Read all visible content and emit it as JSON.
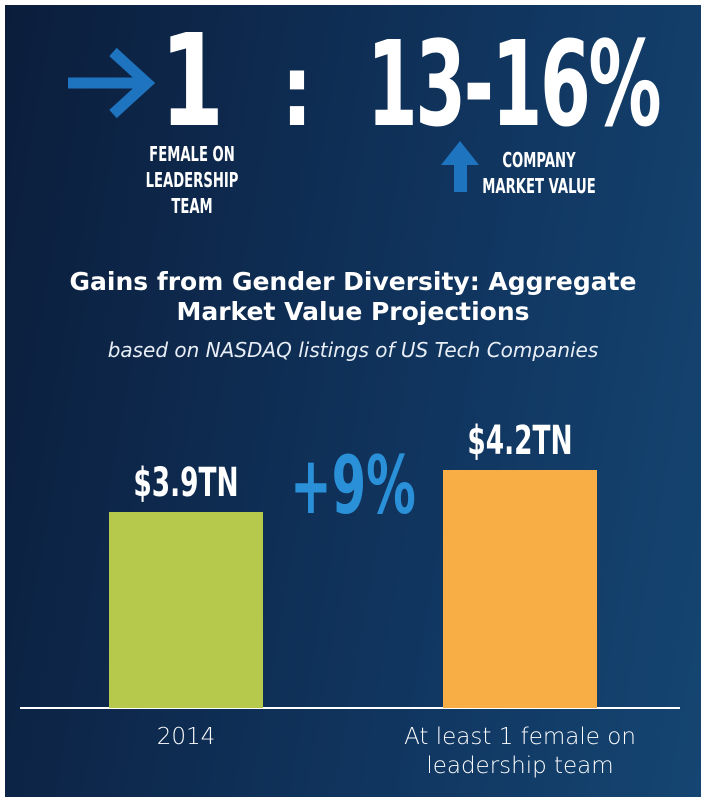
{
  "header": {
    "ratio_left": "1",
    "separator": ":",
    "ratio_right": "13-16%",
    "left_label": [
      "FEMALE ON",
      "LEADERSHIP",
      "TEAM"
    ],
    "right_label": [
      "COMPANY",
      "MARKET VALUE"
    ]
  },
  "chart_data": {
    "type": "bar",
    "title": "Gains from Gender Diversity: Aggregate Market Value Projections",
    "subtitle": "based on NASDAQ listings of US Tech Companies",
    "categories": [
      "2014",
      "At least 1 female on leadership team"
    ],
    "values": [
      3.9,
      4.2
    ],
    "value_labels": [
      "$3.9TN",
      "$4.2TN"
    ],
    "colors": [
      "#b6c94c",
      "#f8ad45"
    ],
    "annotation": "+9%",
    "ylim": [
      2.5,
      4.5
    ]
  }
}
